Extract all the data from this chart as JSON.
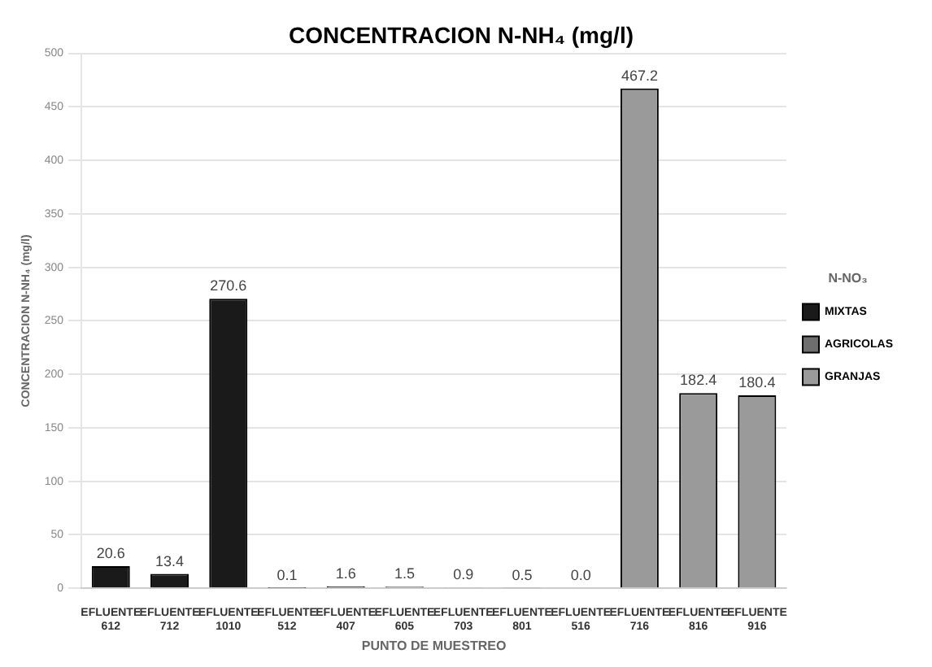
{
  "chart_data": {
    "type": "bar",
    "title": "CONCENTRACION N-NH₄ (mg/l)",
    "xlabel": "PUNTO DE MUESTREO",
    "ylabel": "CONCENTRACION N-NH₄ (mg/l)",
    "legend_title": "N-NO₃",
    "categories": [
      "EFLUENTE 612",
      "EFLUENTE 712",
      "EFLUENTE 1010",
      "EFLUENTE 512",
      "EFLUENTE 407",
      "EFLUENTE 605",
      "EFLUENTE 703",
      "EFLUENTE 801",
      "EFLUENTE 516",
      "EFLUENTE 716",
      "EFLUENTE 816",
      "EFLUENTE 916"
    ],
    "series": [
      {
        "name": "MIXTAS",
        "color": "#1a1a1a",
        "values": [
          20.6,
          13.4,
          270.6,
          null,
          null,
          null,
          null,
          null,
          null,
          null,
          null,
          null
        ],
        "value_labels": [
          "20.6",
          "13.4",
          "270.6",
          null,
          null,
          null,
          null,
          null,
          null,
          null,
          null,
          null
        ]
      },
      {
        "name": "AGRICOLAS",
        "color": "#6e6e6e",
        "values": [
          null,
          null,
          null,
          0.1,
          1.6,
          1.5,
          0.9,
          0.5,
          0.0,
          null,
          null,
          null
        ],
        "value_labels": [
          null,
          null,
          null,
          "0.1",
          "1.6",
          "1.5",
          "0.9",
          "0.5",
          "0.0",
          null,
          null,
          null
        ]
      },
      {
        "name": "GRANJAS",
        "color": "#9a9a9a",
        "values": [
          null,
          null,
          null,
          null,
          null,
          null,
          null,
          null,
          null,
          467.2,
          182.4,
          180.4
        ],
        "value_labels": [
          null,
          null,
          null,
          null,
          null,
          null,
          null,
          null,
          null,
          "467.2",
          "182.4",
          "180.4"
        ]
      }
    ],
    "ylim": [
      0,
      500
    ],
    "yticks": [
      0,
      50,
      100,
      150,
      200,
      250,
      300,
      350,
      400,
      450,
      500
    ],
    "grid": "y",
    "legend": "right"
  }
}
